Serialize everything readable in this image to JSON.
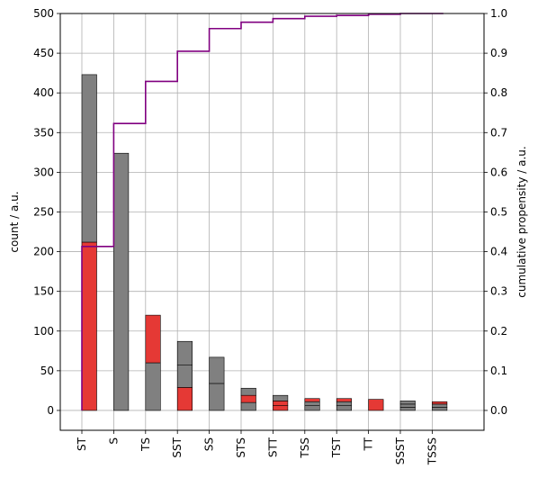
{
  "chart_data": {
    "type": "bar",
    "categories": [
      "ST",
      "S",
      "TS",
      "SST",
      "SS",
      "STS",
      "STT",
      "TSS",
      "TST",
      "TT",
      "SSST",
      "TSSS"
    ],
    "series": [
      {
        "values": [
          423,
          324,
          120,
          87,
          67,
          28,
          19,
          15,
          15,
          14,
          12,
          11
        ],
        "segments": [
          [
            212,
            211
          ],
          [
            0,
            324
          ],
          [
            60,
            60
          ],
          [
            29,
            28,
            30
          ],
          [
            34,
            33
          ],
          [
            10,
            9,
            9
          ],
          [
            6,
            6,
            7
          ],
          [
            6,
            5,
            4
          ],
          [
            6,
            5,
            4
          ],
          [
            14
          ],
          [
            4,
            4,
            4
          ],
          [
            4,
            4,
            3
          ]
        ],
        "segment_colors": [
          [
            "#e53935",
            "#808080"
          ],
          [
            "#e53935",
            "#808080"
          ],
          [
            "#808080",
            "#e53935"
          ],
          [
            "#e53935",
            "#808080",
            "#808080"
          ],
          [
            "#808080",
            "#808080"
          ],
          [
            "#808080",
            "#e53935",
            "#808080"
          ],
          [
            "#e53935",
            "#e53935",
            "#808080"
          ],
          [
            "#808080",
            "#808080",
            "#e53935"
          ],
          [
            "#808080",
            "#808080",
            "#e53935"
          ],
          [
            "#e53935"
          ],
          [
            "#808080",
            "#808080",
            "#808080"
          ],
          [
            "#808080",
            "#808080",
            "#e53935"
          ]
        ]
      },
      {
        "axis": "right",
        "kind": "step",
        "color": "#800080",
        "values": [
          0.413,
          0.723,
          0.829,
          0.905,
          0.962,
          0.978,
          0.987,
          0.993,
          0.995,
          0.998,
          1.0,
          1.0
        ]
      }
    ],
    "ylabel": "count / a.u.",
    "y2label": "cumulative propensity / a.u.",
    "ylim": [
      -25,
      500
    ],
    "y2lim": [
      -0.05,
      1.0
    ],
    "yticks": [
      0,
      50,
      100,
      150,
      200,
      250,
      300,
      350,
      400,
      450,
      500
    ],
    "y2ticks": [
      0.0,
      0.1,
      0.2,
      0.3,
      0.4,
      0.5,
      0.6,
      0.7,
      0.8,
      0.9,
      1.0
    ],
    "grid": true
  }
}
